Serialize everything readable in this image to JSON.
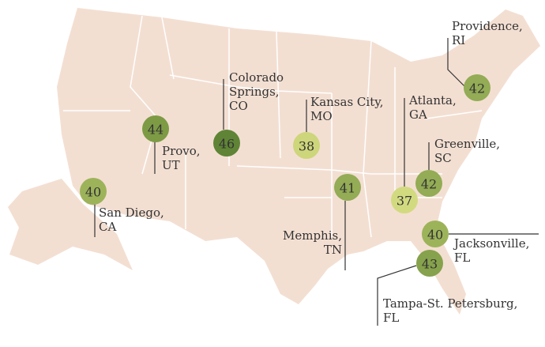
{
  "markers": [
    {
      "label_lines": [
        "Providence,",
        "RI"
      ],
      "value": 42,
      "color": "#93ac55"
    },
    {
      "label_lines": [
        "Colorado",
        "Springs,",
        "CO"
      ],
      "value": 46,
      "color": "#5f8436"
    },
    {
      "label_lines": [
        "Provo,",
        "UT"
      ],
      "value": 44,
      "color": "#7d9b45"
    },
    {
      "label_lines": [
        "Kansas City,",
        "MO"
      ],
      "value": 38,
      "color": "#cdd67a"
    },
    {
      "label_lines": [
        "Atlanta,",
        "GA"
      ],
      "value": 37,
      "color": "#d2da80"
    },
    {
      "label_lines": [
        "Greenville,",
        "SC"
      ],
      "value": 42,
      "color": "#93ac55"
    },
    {
      "label_lines": [
        "San Diego,",
        "CA"
      ],
      "value": 40,
      "color": "#9db35a"
    },
    {
      "label_lines": [
        "Memphis,",
        "TN"
      ],
      "value": 41,
      "color": "#93ac55"
    },
    {
      "label_lines": [
        "Jacksonville,",
        "FL"
      ],
      "value": 40,
      "color": "#9db35a"
    },
    {
      "label_lines": [
        "Tampa-St. Petersburg,",
        "FL"
      ],
      "value": 43,
      "color": "#86a24c"
    }
  ]
}
